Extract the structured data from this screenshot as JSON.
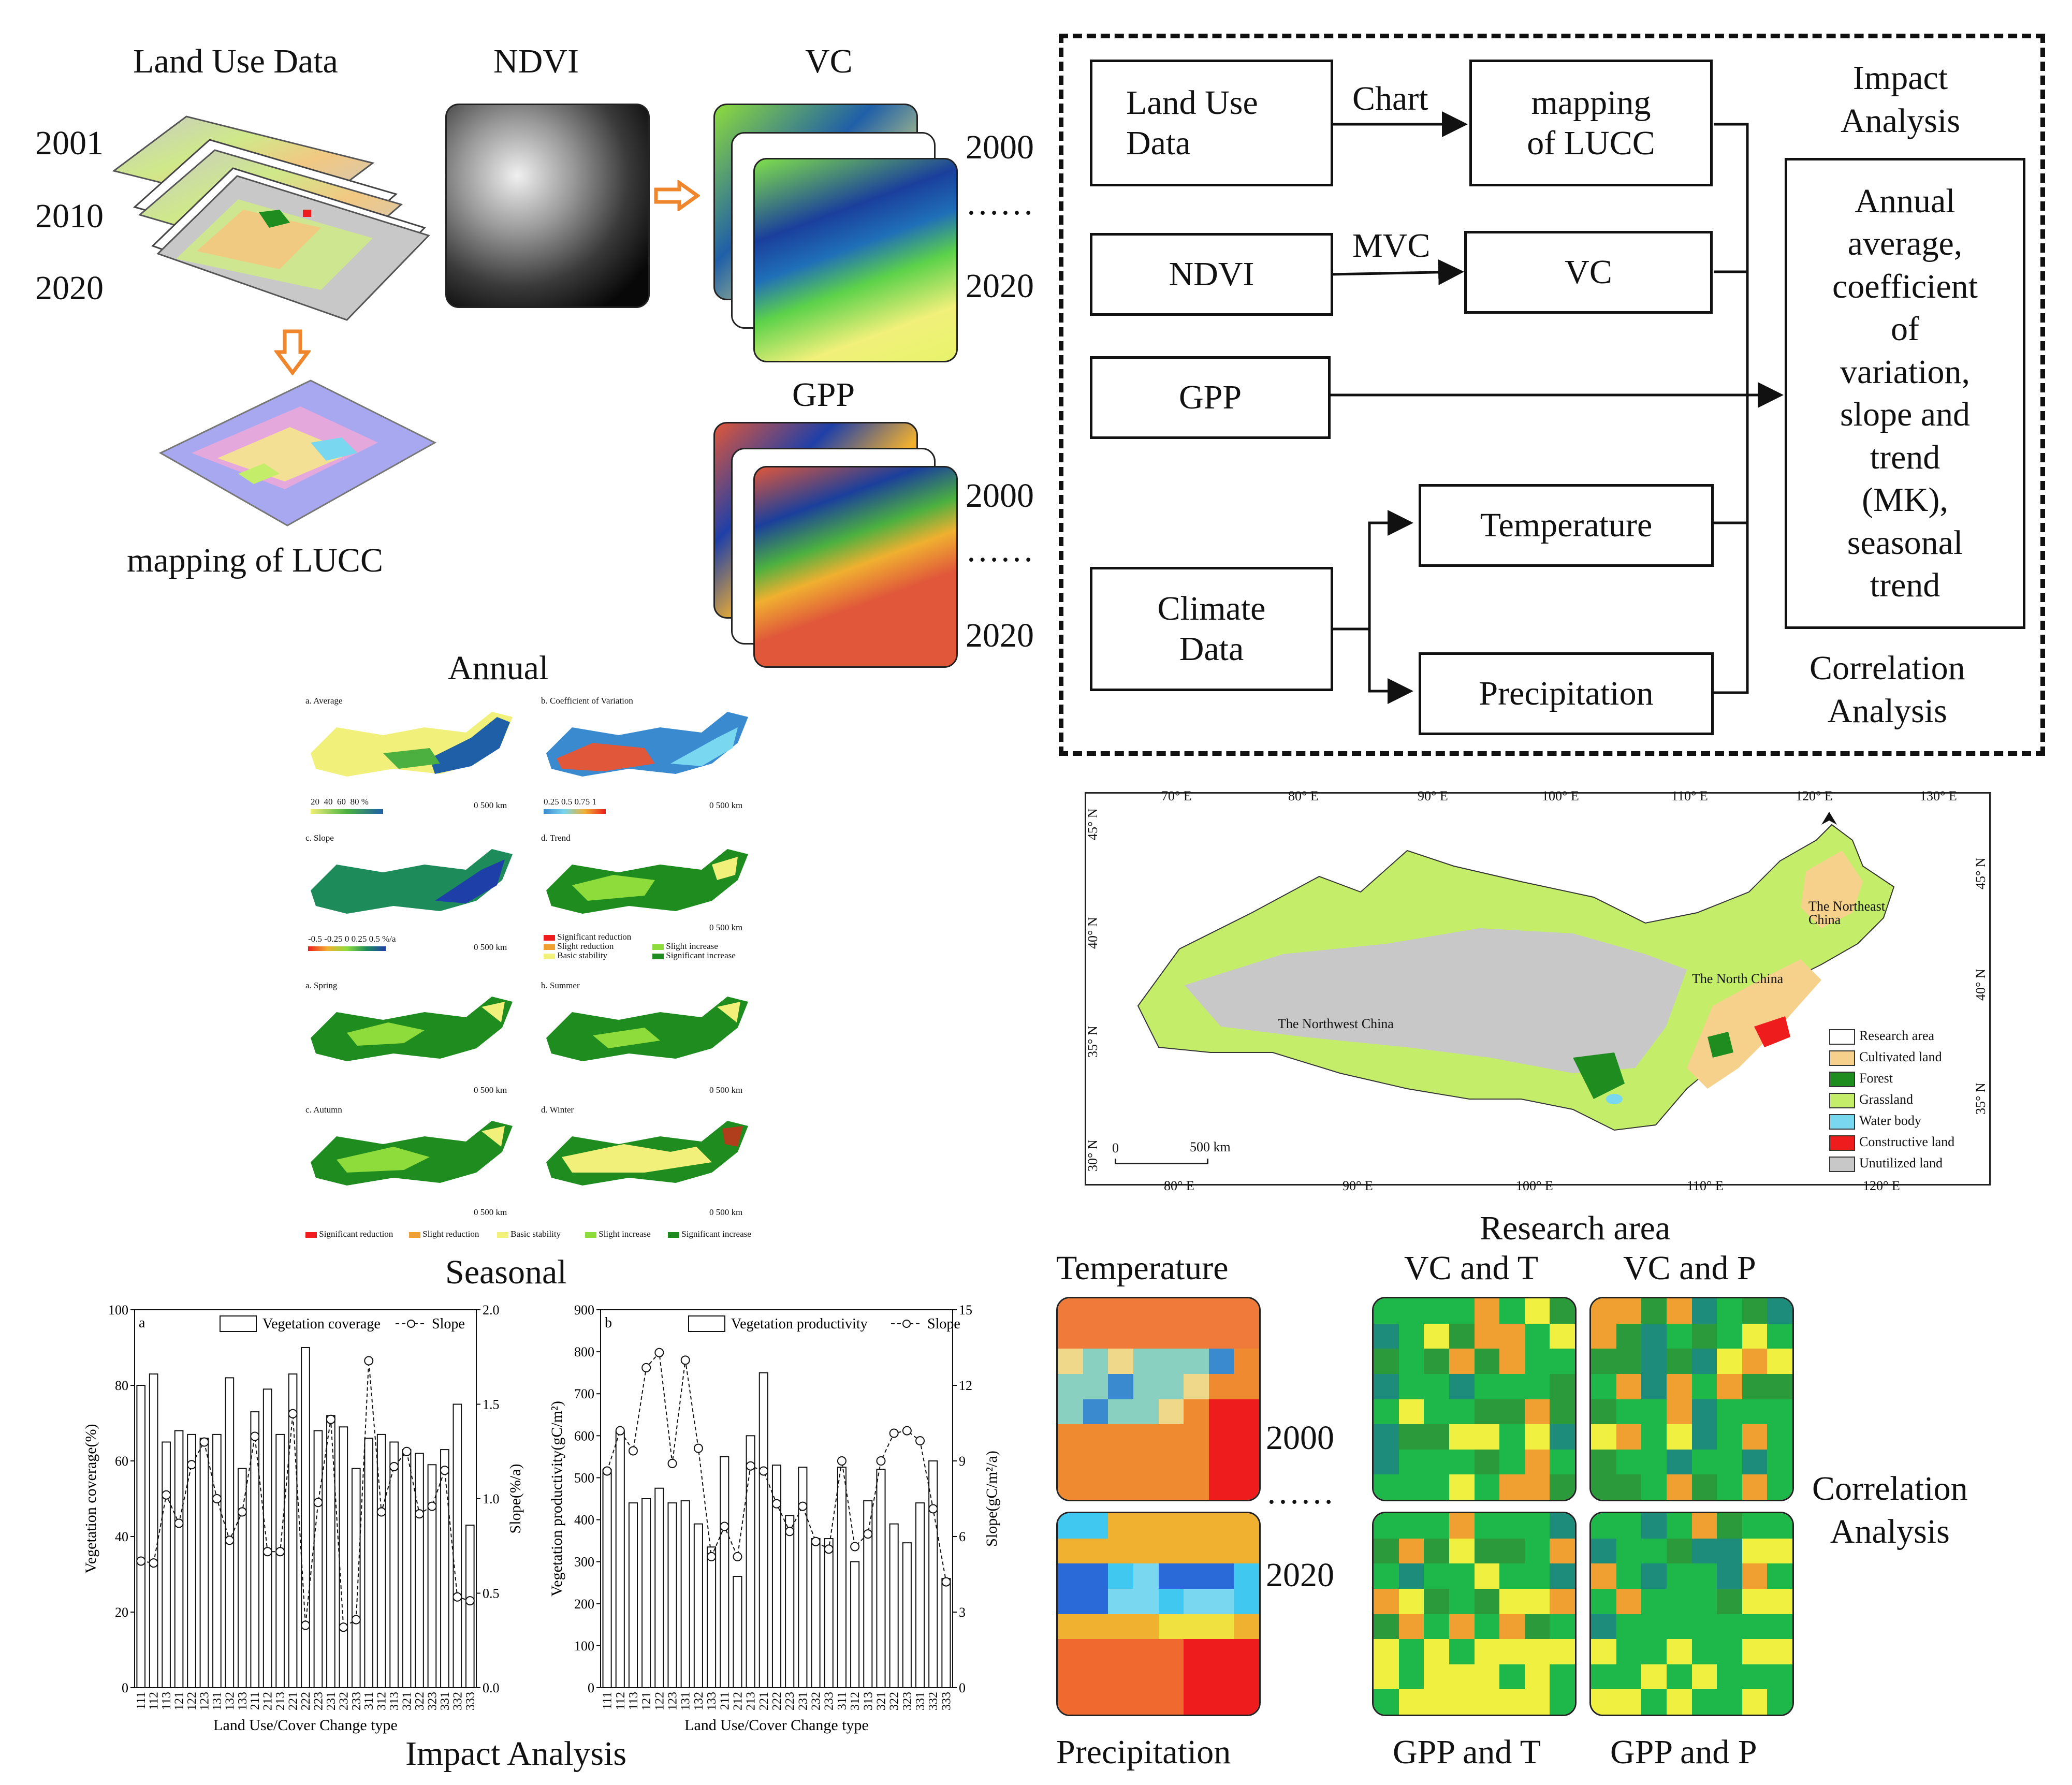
{
  "workflow_top": {
    "land_use_title": "Land Use Data",
    "ndvi_title": "NDVI",
    "vc_title": "VC",
    "gpp_title": "GPP",
    "years_landuse": [
      "2001",
      "2010",
      "2020"
    ],
    "vc_year_start": "2000",
    "vc_year_end": "2020",
    "gpp_year_start": "2000",
    "gpp_year_end": "2020",
    "ellipsis": "……",
    "mapping_label": "mapping of LUCC"
  },
  "flowchart": {
    "land_use": "Land Use\nData",
    "chart_label": "Chart",
    "mapping": "mapping\nof LUCC",
    "ndvi": "NDVI",
    "mvc_label": "MVC",
    "vc": "VC",
    "gpp": "GPP",
    "climate": "Climate\nData",
    "temperature": "Temperature",
    "precipitation": "Precipitation",
    "impact_title": "Impact\nAnalysis",
    "analysis_box": "Annual\naverage,\ncoefficient\nof\nvariation,\nslope and\ntrend\n(MK),\nseasonal\ntrend",
    "correlation_title": "Correlation\nAnalysis"
  },
  "annual_panel": {
    "title_top": "Annual",
    "title_bottom": "Seasonal",
    "panels": [
      {
        "label": "a. Average",
        "scale": "0    500 km"
      },
      {
        "label": "b. Coefficient of Variation",
        "scale": "0    500 km"
      },
      {
        "label": "c. Slope",
        "scale": "0    500 km"
      },
      {
        "label": "d. Trend",
        "scale": "0    500 km"
      },
      {
        "label": "a. Spring",
        "scale": "0    500 km"
      },
      {
        "label": "b. Summer",
        "scale": "0    500 km"
      },
      {
        "label": "c. Autumn",
        "scale": "0    500 km"
      },
      {
        "label": "d. Winter",
        "scale": "0    500 km"
      }
    ],
    "avg_legend": [
      "20",
      "40",
      "60",
      "80",
      "%"
    ],
    "cv_legend": [
      "0.25",
      "0.5",
      "0.75",
      "1"
    ],
    "slope_legend": [
      "-0.5",
      "-0.25",
      "0",
      "0.25",
      "0.5",
      "%/a"
    ],
    "trend_legend": [
      "Significant reduction",
      "Slight reduction",
      "Basic stability",
      "Slight increase",
      "Significant increase"
    ],
    "seasonal_legend": [
      "Significant reduction",
      "Slight reduction",
      "Basic stability",
      "Slight increase",
      "Significant increase"
    ]
  },
  "research_map": {
    "title": "Research area",
    "top_lon": [
      "70° E",
      "80° E",
      "90° E",
      "100° E",
      "110° E",
      "120° E",
      "130° E"
    ],
    "bottom_lon": [
      "80° E",
      "90° E",
      "100° E",
      "110° E",
      "120° E"
    ],
    "left_lat": [
      "45° N",
      "40° N",
      "35° N",
      "30° N"
    ],
    "right_lat": [
      "45° N",
      "40° N",
      "35° N"
    ],
    "regions": [
      "The Northeast China",
      "The North China",
      "The Northwest China"
    ],
    "legend": [
      {
        "name": "Research area",
        "color": "#ffffff"
      },
      {
        "name": "Cultivated land",
        "color": "#f5d18c"
      },
      {
        "name": "Forest",
        "color": "#1e8c1e"
      },
      {
        "name": "Grassland",
        "color": "#c4ee6a"
      },
      {
        "name": "Water body",
        "color": "#7ad7f0"
      },
      {
        "name": "Constructive land",
        "color": "#ee1c1c"
      },
      {
        "name": "Unutilized land",
        "color": "#c8c8c8"
      }
    ],
    "scale": "500 km",
    "scale_zero": "0"
  },
  "bottom_labels": {
    "temperature": "Temperature",
    "precipitation": "Precipitation",
    "year_2000": "2000",
    "year_2020": "2020",
    "ellipsis": "……",
    "vc_t": "VC and T",
    "vc_p": "VC and P",
    "gpp_t": "GPP and T",
    "gpp_p": "GPP and P",
    "correlation": "Correlation\nAnalysis",
    "impact": "Impact Analysis"
  },
  "chart_data": [
    {
      "type": "bar",
      "panel": "a",
      "title": "",
      "xlabel": "Land Use/Cover Change type",
      "ylabel": "Vegetation coverage(%)",
      "y2label": "Slope(%/a)",
      "legend": [
        "Vegetation coverage",
        "Slope"
      ],
      "ylim": [
        0,
        100
      ],
      "yticks": [
        "0",
        "20",
        "40",
        "60",
        "80",
        "100"
      ],
      "y2lim": [
        0,
        2.0
      ],
      "y2ticks": [
        "0.0",
        "0.5",
        "1.0",
        "1.5",
        "2.0"
      ],
      "categories": [
        "111",
        "112",
        "113",
        "121",
        "122",
        "123",
        "131",
        "132",
        "133",
        "211",
        "212",
        "213",
        "221",
        "222",
        "223",
        "231",
        "232",
        "233",
        "311",
        "312",
        "313",
        "321",
        "322",
        "323",
        "331",
        "332",
        "333"
      ],
      "series": [
        {
          "name": "Vegetation coverage",
          "values": [
            80,
            83,
            65,
            68,
            67,
            66,
            67,
            82,
            58,
            73,
            79,
            67,
            83,
            90,
            68,
            72,
            69,
            58,
            66,
            67,
            65,
            63,
            62,
            59,
            63,
            75,
            43
          ]
        },
        {
          "name": "Slope",
          "values": [
            0.67,
            0.66,
            1.02,
            0.87,
            1.18,
            1.3,
            1.0,
            0.78,
            0.93,
            1.33,
            0.72,
            0.72,
            1.45,
            0.33,
            0.98,
            1.42,
            0.32,
            0.36,
            1.73,
            0.93,
            1.17,
            1.25,
            0.92,
            0.96,
            1.15,
            0.48,
            0.46
          ]
        }
      ]
    },
    {
      "type": "bar",
      "panel": "b",
      "title": "",
      "xlabel": "Land Use/Cover Change type",
      "ylabel": "Vegetation productivity(gC/m²)",
      "y2label": "Slope(gC/m²/a)",
      "legend": [
        "Vegetation productivity",
        "Slope"
      ],
      "ylim": [
        0,
        900
      ],
      "yticks": [
        "0",
        "100",
        "200",
        "300",
        "400",
        "500",
        "600",
        "700",
        "800",
        "900"
      ],
      "y2lim": [
        0,
        15
      ],
      "y2ticks": [
        "0",
        "3",
        "6",
        "9",
        "12",
        "15"
      ],
      "categories": [
        "111",
        "112",
        "113",
        "121",
        "122",
        "123",
        "131",
        "132",
        "133",
        "211",
        "212",
        "213",
        "221",
        "222",
        "223",
        "231",
        "232",
        "233",
        "311",
        "312",
        "313",
        "321",
        "322",
        "323",
        "331",
        "332",
        "333"
      ],
      "series": [
        {
          "name": "Vegetation productivity",
          "values": [
            520,
            610,
            440,
            450,
            475,
            440,
            445,
            390,
            335,
            550,
            265,
            600,
            750,
            530,
            410,
            525,
            355,
            355,
            525,
            300,
            445,
            520,
            390,
            345,
            440,
            540,
            260
          ]
        },
        {
          "name": "Slope",
          "values": [
            8.6,
            10.2,
            9.4,
            12.7,
            13.3,
            8.9,
            13.0,
            9.5,
            5.2,
            6.4,
            5.2,
            8.8,
            8.6,
            7.3,
            6.2,
            7.2,
            5.8,
            5.5,
            9.0,
            5.6,
            6.1,
            9.0,
            10.1,
            10.2,
            9.8,
            7.1,
            4.2
          ]
        }
      ]
    }
  ]
}
